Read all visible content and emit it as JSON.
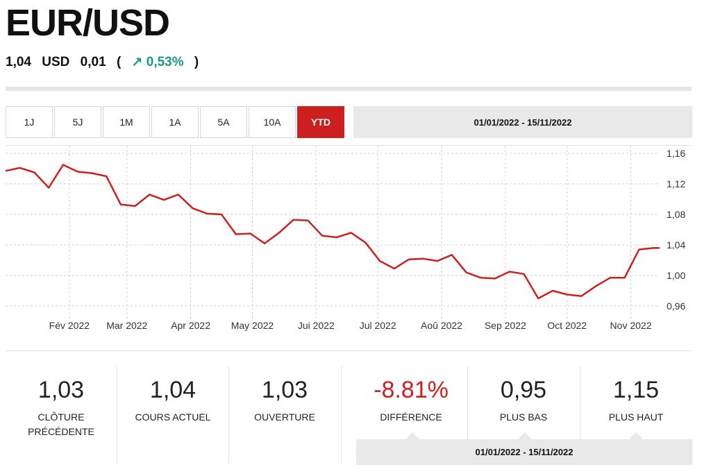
{
  "header": {
    "title": "EUR/USD",
    "price": "1,04",
    "currency": "USD",
    "change": "0,01",
    "change_pct": "↗ 0,53%",
    "open_paren": "(",
    "close_paren": ")"
  },
  "tabs": [
    {
      "label": "1J",
      "active": false
    },
    {
      "label": "5J",
      "active": false
    },
    {
      "label": "1M",
      "active": false
    },
    {
      "label": "1A",
      "active": false
    },
    {
      "label": "5A",
      "active": false
    },
    {
      "label": "10A",
      "active": false
    },
    {
      "label": "YTD",
      "active": true
    }
  ],
  "date_range": "01/01/2022 - 15/11/2022",
  "colors": {
    "accent": "#cc1f1f",
    "positive": "#1a9a86",
    "line": "#cc1f1f",
    "grid": "#d0d0d0"
  },
  "chart_data": {
    "type": "line",
    "grid": true,
    "ylim": [
      0.94,
      1.17
    ],
    "yticks": [
      1.16,
      1.12,
      1.08,
      1.04,
      1.0,
      0.96
    ],
    "ytick_labels": [
      "1,16",
      "1,12",
      "1,08",
      "1,04",
      "1,00",
      "0,96"
    ],
    "xticks": [
      "2022-02-01",
      "2022-03-01",
      "2022-04-01",
      "2022-05-01",
      "2022-06-01",
      "2022-07-01",
      "2022-08-01",
      "2022-09-01",
      "2022-10-01",
      "2022-11-01"
    ],
    "xtick_labels": [
      "Fév 2022",
      "Mar 2022",
      "Apr 2022",
      "May 2022",
      "Jui 2022",
      "Jul 2022",
      "Aoû 2022",
      "Sep 2022",
      "Oct 2022",
      "Nov 2022"
    ],
    "series": [
      {
        "x": [
          "2022-01-01",
          "2022-01-08",
          "2022-01-15",
          "2022-01-22",
          "2022-01-29",
          "2022-02-05",
          "2022-02-12",
          "2022-02-19",
          "2022-02-26",
          "2022-03-05",
          "2022-03-12",
          "2022-03-19",
          "2022-03-26",
          "2022-04-02",
          "2022-04-09",
          "2022-04-16",
          "2022-04-23",
          "2022-04-30",
          "2022-05-07",
          "2022-05-14",
          "2022-05-21",
          "2022-05-28",
          "2022-06-04",
          "2022-06-11",
          "2022-06-18",
          "2022-06-25",
          "2022-07-02",
          "2022-07-09",
          "2022-07-16",
          "2022-07-23",
          "2022-07-30",
          "2022-08-06",
          "2022-08-13",
          "2022-08-20",
          "2022-08-27",
          "2022-09-03",
          "2022-09-10",
          "2022-09-17",
          "2022-09-24",
          "2022-10-01",
          "2022-10-08",
          "2022-10-15",
          "2022-10-22",
          "2022-10-29",
          "2022-11-05",
          "2022-11-12",
          "2022-11-15"
        ],
        "y": [
          1.137,
          1.141,
          1.135,
          1.115,
          1.145,
          1.136,
          1.134,
          1.13,
          1.093,
          1.091,
          1.106,
          1.099,
          1.106,
          1.088,
          1.081,
          1.08,
          1.054,
          1.055,
          1.042,
          1.056,
          1.073,
          1.072,
          1.052,
          1.05,
          1.056,
          1.043,
          1.019,
          1.009,
          1.021,
          1.022,
          1.019,
          1.027,
          1.004,
          0.997,
          0.996,
          1.005,
          1.002,
          0.97,
          0.98,
          0.975,
          0.973,
          0.986,
          0.997,
          0.997,
          1.034,
          1.036,
          1.036
        ]
      }
    ]
  },
  "stats": [
    {
      "value": "1,03",
      "label": "CLÔTURE PRÉCÉDENTE",
      "negative": false
    },
    {
      "value": "1,04",
      "label": "COURS ACTUEL",
      "negative": false
    },
    {
      "value": "1,03",
      "label": "OUVERTURE",
      "negative": false
    },
    {
      "value": "-8.81%",
      "label": "DIFFÉRENCE",
      "negative": true
    },
    {
      "value": "0,95",
      "label": "PLUS BAS",
      "negative": false
    },
    {
      "value": "1,15",
      "label": "PLUS HAUT",
      "negative": false
    }
  ]
}
